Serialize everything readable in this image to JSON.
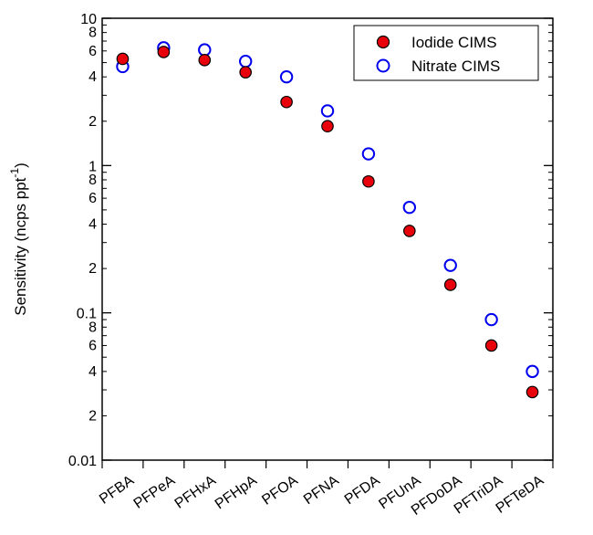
{
  "chart_data": {
    "type": "scatter",
    "title": "",
    "xlabel": "",
    "ylabel": "Sensitivity (ncps ppt",
    "ylabel_superscript": "-1",
    "ylabel_suffix": ")",
    "yscale": "log",
    "ylim": [
      0.01,
      10
    ],
    "y_major_ticks": [
      {
        "value": 0.01,
        "label": "0.01"
      },
      {
        "value": 0.1,
        "label": "0.1"
      },
      {
        "value": 1,
        "label": "1"
      },
      {
        "value": 10,
        "label": "10"
      }
    ],
    "y_minor_labeled": [
      {
        "value": 0.02,
        "label": "2"
      },
      {
        "value": 0.04,
        "label": "4"
      },
      {
        "value": 0.06,
        "label": "6"
      },
      {
        "value": 0.08,
        "label": "8"
      },
      {
        "value": 0.2,
        "label": "2"
      },
      {
        "value": 0.4,
        "label": "4"
      },
      {
        "value": 0.6,
        "label": "6"
      },
      {
        "value": 0.8,
        "label": "8"
      },
      {
        "value": 2,
        "label": "2"
      },
      {
        "value": 4,
        "label": "4"
      },
      {
        "value": 6,
        "label": "6"
      },
      {
        "value": 8,
        "label": "8"
      }
    ],
    "categories": [
      "PFBA",
      "PFPeA",
      "PFHxA",
      "PFHpA",
      "PFOA",
      "PFNA",
      "PFDA",
      "PFUnA",
      "PFDoDA",
      "PFTriDA",
      "PFTeDA"
    ],
    "series": [
      {
        "name": "Iodide CIMS",
        "marker": "filled-circle",
        "fill": "#e8000b",
        "stroke": "#000000",
        "values": [
          5.3,
          5.9,
          5.2,
          4.3,
          2.7,
          1.85,
          0.78,
          0.36,
          0.155,
          0.06,
          0.029
        ]
      },
      {
        "name": "Nitrate CIMS",
        "marker": "open-circle",
        "fill": "none",
        "stroke": "#0000ee",
        "values": [
          4.7,
          6.3,
          6.1,
          5.1,
          4.0,
          2.35,
          1.2,
          0.52,
          0.21,
          0.09,
          0.04
        ]
      }
    ],
    "legend": {
      "position": "top-right"
    },
    "grid": false
  }
}
